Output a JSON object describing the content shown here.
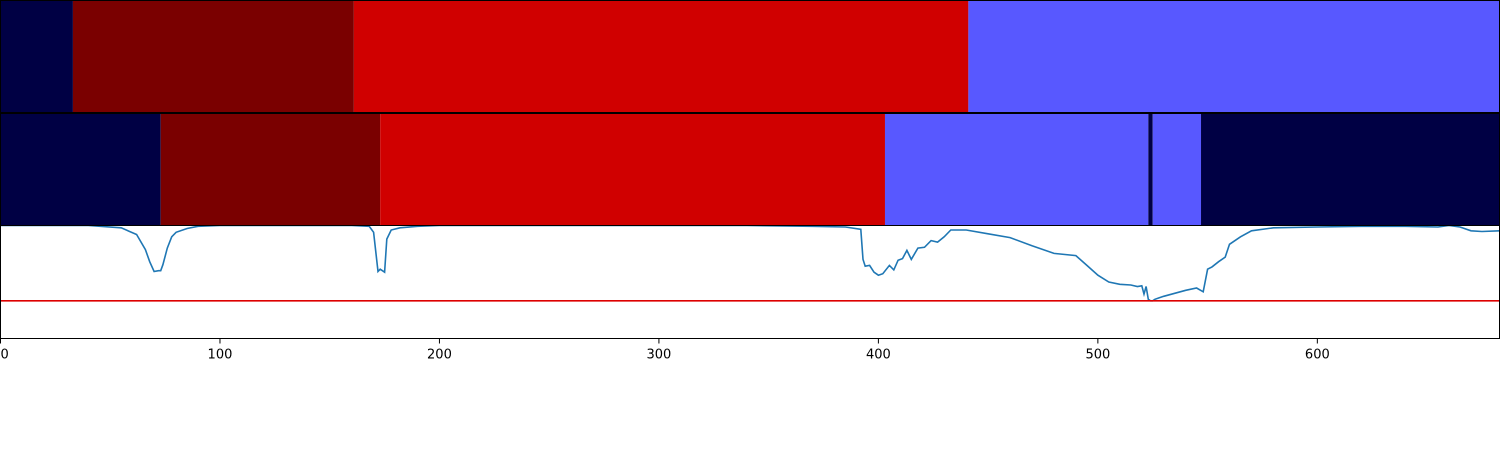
{
  "chart_data": [
    {
      "type": "heatmap",
      "panel": "top",
      "segments": [
        {
          "start": 0,
          "end": 33,
          "color": "#000044"
        },
        {
          "start": 33,
          "end": 161,
          "color": "#7a0000"
        },
        {
          "start": 161,
          "end": 441,
          "color": "#d00000"
        },
        {
          "start": 441,
          "end": 683,
          "color": "#5858ff"
        }
      ]
    },
    {
      "type": "heatmap",
      "panel": "middle",
      "segments": [
        {
          "start": 0,
          "end": 73,
          "color": "#000044"
        },
        {
          "start": 73,
          "end": 173,
          "color": "#7a0000"
        },
        {
          "start": 173,
          "end": 403,
          "color": "#d00000"
        },
        {
          "start": 403,
          "end": 523,
          "color": "#5858ff"
        },
        {
          "start": 523,
          "end": 525,
          "color": "#000044"
        },
        {
          "start": 525,
          "end": 547,
          "color": "#5858ff"
        },
        {
          "start": 547,
          "end": 683,
          "color": "#000044"
        }
      ]
    },
    {
      "type": "line",
      "panel": "bottom",
      "xlim": [
        0,
        683
      ],
      "ylim": [
        -0.5,
        1.0
      ],
      "xticks": [
        0,
        100,
        200,
        300,
        400,
        500,
        600
      ],
      "xtick_labels": [
        "0",
        "100",
        "200",
        "300",
        "400",
        "500",
        "600"
      ],
      "threshold": {
        "value": 0.0,
        "color": "#dd0000"
      },
      "series": [
        {
          "color": "#1f77b4",
          "x": [
            0,
            20,
            40,
            55,
            62,
            66,
            68,
            70,
            72,
            73,
            74,
            76,
            78,
            80,
            85,
            90,
            100,
            120,
            140,
            160,
            168,
            170,
            171,
            172,
            173,
            174,
            175,
            176,
            178,
            182,
            190,
            200,
            220,
            260,
            300,
            340,
            370,
            385,
            392,
            393,
            394,
            396,
            398,
            400,
            402,
            405,
            407,
            409,
            411,
            413,
            415,
            418,
            421,
            424,
            427,
            430,
            433,
            440,
            450,
            460,
            470,
            480,
            490,
            495,
            500,
            505,
            510,
            515,
            518,
            520,
            521,
            522,
            523,
            524,
            525,
            526,
            528,
            530,
            535,
            540,
            545,
            548,
            550,
            552,
            555,
            558,
            560,
            565,
            570,
            580,
            600,
            620,
            640,
            655,
            660,
            665,
            670,
            675,
            683
          ],
          "y": [
            1.0,
            1.0,
            1.0,
            0.97,
            0.88,
            0.68,
            0.52,
            0.39,
            0.4,
            0.4,
            0.48,
            0.7,
            0.85,
            0.91,
            0.96,
            0.99,
            1.0,
            1.0,
            1.0,
            1.0,
            0.99,
            0.91,
            0.65,
            0.39,
            0.42,
            0.4,
            0.38,
            0.82,
            0.94,
            0.97,
            0.99,
            1.0,
            1.0,
            1.0,
            1.0,
            1.0,
            0.99,
            0.98,
            0.95,
            0.55,
            0.46,
            0.47,
            0.38,
            0.34,
            0.36,
            0.47,
            0.41,
            0.54,
            0.56,
            0.67,
            0.55,
            0.7,
            0.71,
            0.8,
            0.78,
            0.85,
            0.94,
            0.94,
            0.89,
            0.84,
            0.73,
            0.63,
            0.6,
            0.47,
            0.34,
            0.25,
            0.22,
            0.21,
            0.19,
            0.2,
            0.09,
            0.19,
            0.02,
            0.0,
            0.0,
            0.02,
            0.04,
            0.06,
            0.1,
            0.14,
            0.17,
            0.12,
            0.42,
            0.45,
            0.52,
            0.58,
            0.75,
            0.85,
            0.93,
            0.97,
            0.98,
            0.99,
            0.99,
            0.98,
            1.0,
            0.98,
            0.93,
            0.92,
            0.93
          ]
        }
      ]
    }
  ]
}
